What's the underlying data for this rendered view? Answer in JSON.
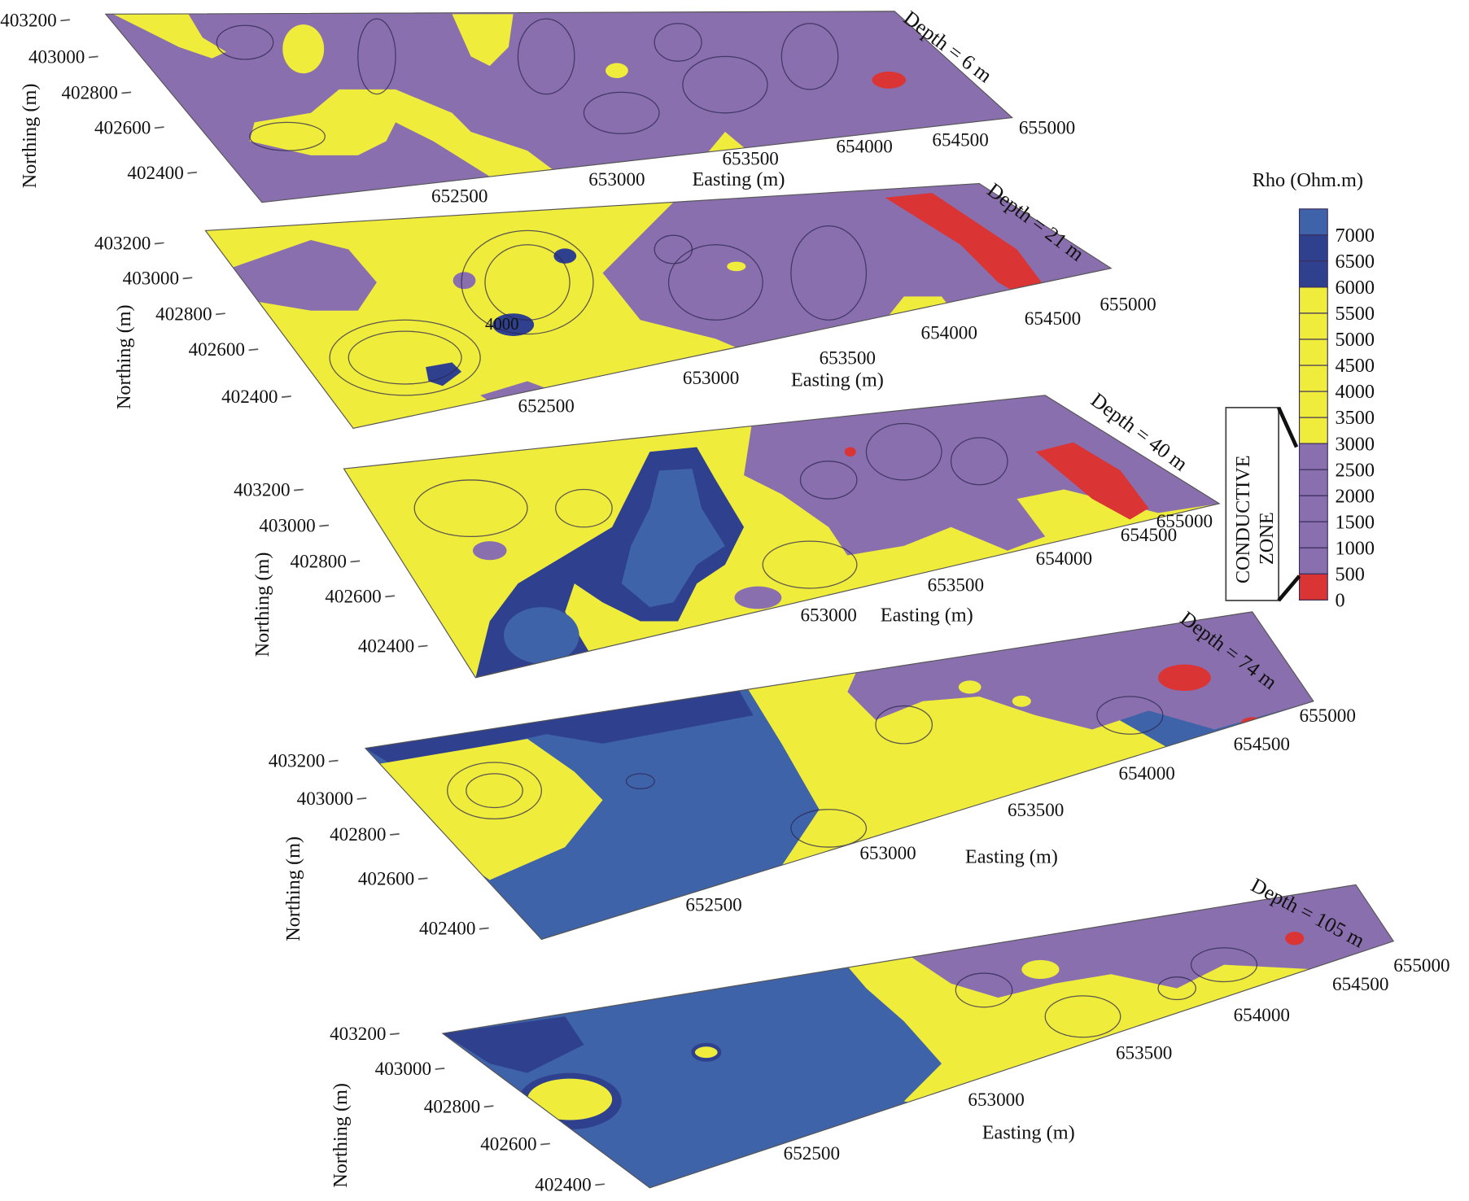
{
  "figure": {
    "northing_axis_label": "Northing (m)",
    "easting_axis_label": "Easting (m)",
    "slices": [
      {
        "depth_label": "Depth = 6 m",
        "northing_ticks": [
          "403200",
          "403000",
          "402800",
          "402600",
          "402400"
        ],
        "easting_ticks": [
          "652500",
          "653000",
          "653500",
          "654000",
          "654500",
          "655000"
        ]
      },
      {
        "depth_label": "Depth = 21 m",
        "northing_ticks": [
          "403200",
          "403000",
          "402800",
          "402600",
          "402400"
        ],
        "easting_ticks": [
          "652500",
          "653000",
          "653500",
          "654000",
          "654500",
          "655000"
        ],
        "contour_annotation": "4000"
      },
      {
        "depth_label": "Depth = 40 m",
        "northing_ticks": [
          "403200",
          "403000",
          "402800",
          "402600",
          "402400"
        ],
        "easting_ticks": [
          "653000",
          "653500",
          "654000",
          "654500",
          "655000"
        ]
      },
      {
        "depth_label": "Depth = 74 m",
        "northing_ticks": [
          "403200",
          "403000",
          "402800",
          "402600",
          "402400"
        ],
        "easting_ticks": [
          "652500",
          "653000",
          "653500",
          "654000",
          "654500",
          "655000"
        ]
      },
      {
        "depth_label": "Depth = 105 m",
        "northing_ticks": [
          "403200",
          "403000",
          "402800",
          "402600",
          "402400"
        ],
        "easting_ticks": [
          "652500",
          "653000",
          "653500",
          "654000",
          "654500",
          "655000"
        ]
      }
    ]
  },
  "legend": {
    "title": "Rho (Ohm.m)",
    "levels": [
      "7000",
      "6500",
      "6000",
      "5500",
      "5000",
      "4500",
      "4000",
      "3500",
      "3000",
      "2500",
      "2000",
      "1500",
      "1000",
      "500",
      "0"
    ],
    "annotation_line1": "CONDUCTIVE",
    "annotation_line2": "ZONE",
    "colors": {
      "high": "#3e63a8",
      "very_high": "#2f418e",
      "medium": "#f0ec3c",
      "low": "#8a6fae",
      "conductive": "#da3434"
    }
  }
}
